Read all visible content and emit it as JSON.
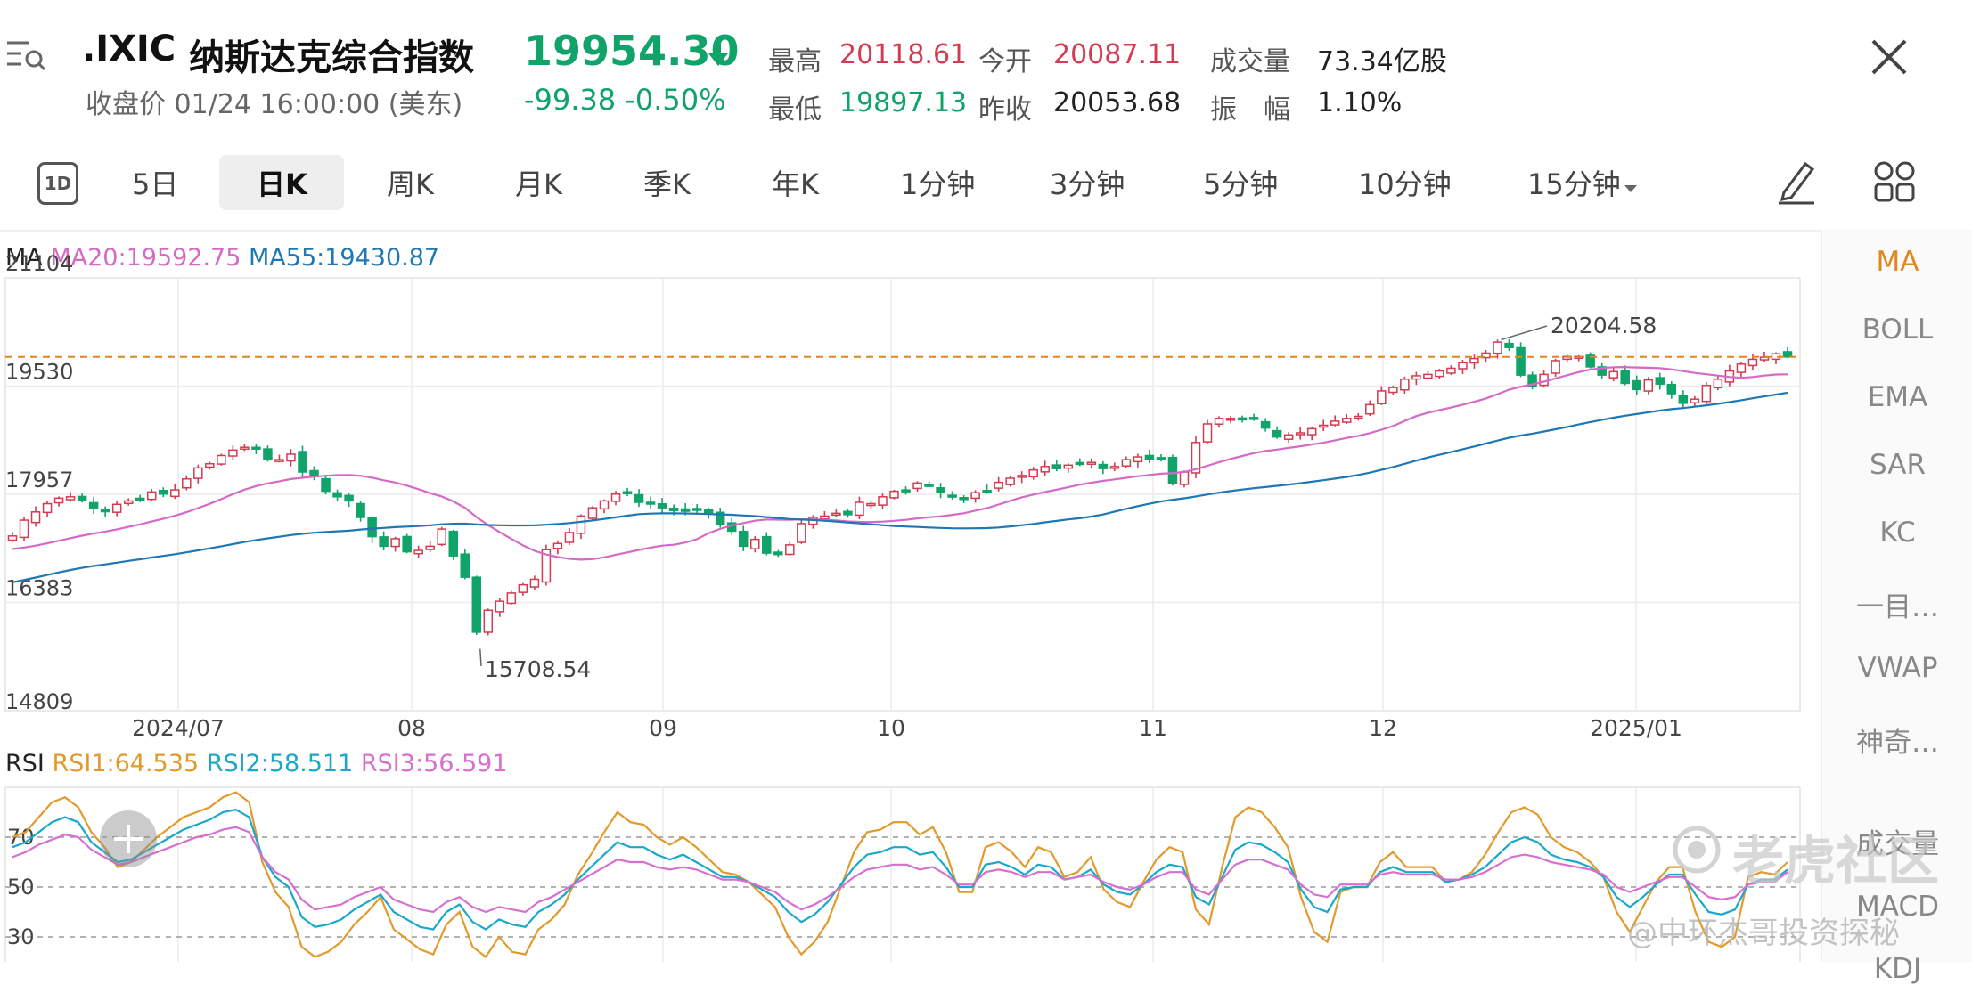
{
  "header": {
    "ticker": ".IXIC",
    "name": "纳斯达克综合指数",
    "close_info": "收盘价 01/24 16:00:00 (美东)",
    "price": "19954.30",
    "change": "-99.38  -0.50%",
    "stats": {
      "high_label": "最高",
      "high": "20118.61",
      "open_label": "今开",
      "open": "20087.11",
      "volume_label": "成交量",
      "volume": "73.34亿股",
      "low_label": "最低",
      "low": "19897.13",
      "prev_close_label": "昨收",
      "prev_close": "20053.68",
      "amplitude_label": "振　幅",
      "amplitude": "1.10%"
    }
  },
  "tabs": [
    "1D",
    "5日",
    "日K",
    "周K",
    "月K",
    "季K",
    "年K",
    "1分钟",
    "3分钟",
    "5分钟",
    "10分钟",
    "15分钟"
  ],
  "active_tab": "日K",
  "ma_legend": {
    "label": "MA",
    "ma20": "MA20:19592.75",
    "ma55": "MA55:19430.87"
  },
  "rsi_legend": {
    "label": "RSI",
    "rsi1": "RSI1:64.535",
    "rsi2": "RSI2:58.511",
    "rsi3": "RSI3:56.591"
  },
  "indicators": [
    "MA",
    "BOLL",
    "EMA",
    "SAR",
    "KC",
    "一目…",
    "VWAP",
    "神奇…",
    "成交量",
    "MACD",
    "KDJ"
  ],
  "watermark": {
    "brand": "老虎社区",
    "author": "@中环杰哥投资探秘"
  },
  "colors": {
    "up": "#d23b50",
    "down": "#10a36a",
    "ma20": "#d569c6",
    "ma55": "#1f77b4",
    "rsi1": "#e29a2c",
    "rsi2": "#19a8c9",
    "rsi3": "#d86fd0",
    "ref_line": "#e0861d"
  },
  "chart_data": [
    {
      "type": "candlestick",
      "y_ticks": [
        "21104",
        "19530",
        "17957",
        "16383",
        "14809"
      ],
      "y_tick_values": [
        21104,
        19530,
        17957,
        16383,
        14809
      ],
      "ylim": [
        14809,
        21104
      ],
      "x_labels": [
        "2024/07",
        "08",
        "09",
        "10",
        "11",
        "12",
        "2025/01"
      ],
      "reference_line": 19954.3,
      "annotations": {
        "max": "20204.58",
        "min": "15708.54"
      },
      "closes": [
        17350,
        17580,
        17700,
        17820,
        17900,
        17920,
        17870,
        17760,
        17720,
        17810,
        17860,
        17880,
        17990,
        17960,
        18020,
        18180,
        18340,
        18400,
        18520,
        18600,
        18640,
        18620,
        18470,
        18460,
        18540,
        18280,
        18220,
        18000,
        17920,
        17860,
        17620,
        17340,
        17200,
        17310,
        17120,
        17140,
        17200,
        17450,
        17060,
        16750,
        15950,
        16270,
        16400,
        16520,
        16640,
        16720,
        17150,
        17240,
        17400,
        17640,
        17760,
        17860,
        17960,
        17980,
        17840,
        17820,
        17760,
        17720,
        17710,
        17740,
        17690,
        17520,
        17420,
        17200,
        17300,
        17100,
        17080,
        17220,
        17530,
        17620,
        17640,
        17680,
        17660,
        17840,
        17820,
        17920,
        18000,
        18010,
        18120,
        18080,
        17980,
        17920,
        17900,
        17980,
        18010,
        18130,
        18190,
        18230,
        18310,
        18360,
        18330,
        18380,
        18410,
        18420,
        18330,
        18360,
        18460,
        18500,
        18460,
        18460,
        18120,
        18280,
        18710,
        18980,
        19060,
        19060,
        19060,
        19050,
        18920,
        18790,
        18820,
        18850,
        18910,
        18960,
        19020,
        19060,
        19090,
        19260,
        19460,
        19510,
        19630,
        19680,
        19700,
        19750,
        19790,
        19870,
        19930,
        20010,
        20170,
        20090,
        19690,
        19520,
        19700,
        19900,
        19960,
        19960,
        19810,
        19690,
        19740,
        19570,
        19480,
        19620,
        19560,
        19420,
        19280,
        19340,
        19540,
        19630,
        19750,
        19850,
        19920,
        19950,
        20000,
        19954
      ]
    },
    {
      "type": "line",
      "name": "RSI",
      "y_ticks": [
        "70",
        "50",
        "30"
      ],
      "ylim": [
        20,
        90
      ],
      "series": [
        {
          "name": "RSI1",
          "values": [
            70,
            72,
            78,
            84,
            86,
            82,
            72,
            66,
            58,
            60,
            65,
            70,
            74,
            78,
            80,
            82,
            86,
            88,
            84,
            60,
            48,
            42,
            26,
            22,
            24,
            28,
            35,
            40,
            46,
            33,
            29,
            25,
            23,
            35,
            40,
            26,
            22,
            30,
            24,
            23,
            33,
            37,
            43,
            55,
            63,
            72,
            80,
            76,
            75,
            70,
            67,
            70,
            66,
            61,
            56,
            55,
            52,
            47,
            42,
            30,
            23,
            28,
            36,
            50,
            64,
            72,
            73,
            76,
            76,
            71,
            74,
            64,
            48,
            48,
            66,
            68,
            64,
            58,
            66,
            64,
            54,
            56,
            62,
            49,
            44,
            42,
            52,
            61,
            66,
            64,
            41,
            35,
            58,
            78,
            82,
            80,
            74,
            66,
            46,
            32,
            28,
            48,
            50,
            50,
            60,
            64,
            58,
            58,
            58,
            52,
            53,
            56,
            63,
            72,
            80,
            82,
            79,
            70,
            66,
            64,
            60,
            54,
            40,
            32,
            42,
            52,
            58,
            58,
            40,
            28,
            26,
            30,
            54,
            56,
            55,
            60
          ]
        },
        {
          "name": "RSI2",
          "values": [
            66,
            68,
            72,
            76,
            78,
            76,
            68,
            64,
            60,
            61,
            64,
            67,
            70,
            73,
            75,
            77,
            80,
            81,
            78,
            62,
            54,
            50,
            38,
            34,
            35,
            37,
            41,
            44,
            47,
            40,
            37,
            34,
            33,
            40,
            43,
            36,
            33,
            37,
            35,
            34,
            40,
            43,
            47,
            53,
            58,
            63,
            68,
            66,
            66,
            63,
            61,
            63,
            60,
            57,
            54,
            54,
            52,
            49,
            46,
            40,
            36,
            39,
            44,
            51,
            58,
            63,
            64,
            66,
            66,
            63,
            64,
            58,
            50,
            50,
            59,
            60,
            58,
            55,
            59,
            58,
            53,
            54,
            57,
            51,
            48,
            47,
            51,
            56,
            59,
            58,
            46,
            43,
            54,
            65,
            68,
            67,
            64,
            60,
            49,
            42,
            40,
            49,
            50,
            50,
            56,
            58,
            56,
            56,
            56,
            52,
            53,
            55,
            58,
            63,
            68,
            70,
            68,
            63,
            61,
            60,
            58,
            54,
            46,
            42,
            46,
            51,
            55,
            55,
            47,
            40,
            39,
            41,
            51,
            53,
            53,
            57
          ]
        },
        {
          "name": "RSI3",
          "values": [
            62,
            64,
            67,
            69,
            71,
            70,
            65,
            62,
            59,
            60,
            62,
            64,
            66,
            68,
            70,
            71,
            73,
            74,
            72,
            62,
            56,
            53,
            45,
            41,
            42,
            43,
            46,
            48,
            50,
            45,
            43,
            41,
            40,
            44,
            46,
            42,
            40,
            42,
            41,
            40,
            44,
            46,
            49,
            52,
            55,
            58,
            61,
            60,
            60,
            58,
            57,
            58,
            57,
            55,
            53,
            53,
            52,
            50,
            48,
            44,
            41,
            43,
            46,
            50,
            54,
            57,
            58,
            59,
            59,
            57,
            58,
            55,
            51,
            51,
            56,
            57,
            56,
            54,
            56,
            56,
            53,
            54,
            55,
            52,
            50,
            49,
            51,
            54,
            56,
            56,
            49,
            47,
            53,
            59,
            61,
            61,
            59,
            57,
            51,
            47,
            46,
            51,
            51,
            51,
            55,
            56,
            55,
            55,
            55,
            53,
            53,
            54,
            56,
            59,
            62,
            63,
            62,
            60,
            59,
            58,
            57,
            55,
            50,
            48,
            50,
            52,
            54,
            54,
            50,
            46,
            45,
            46,
            51,
            52,
            52,
            56
          ]
        }
      ]
    }
  ]
}
